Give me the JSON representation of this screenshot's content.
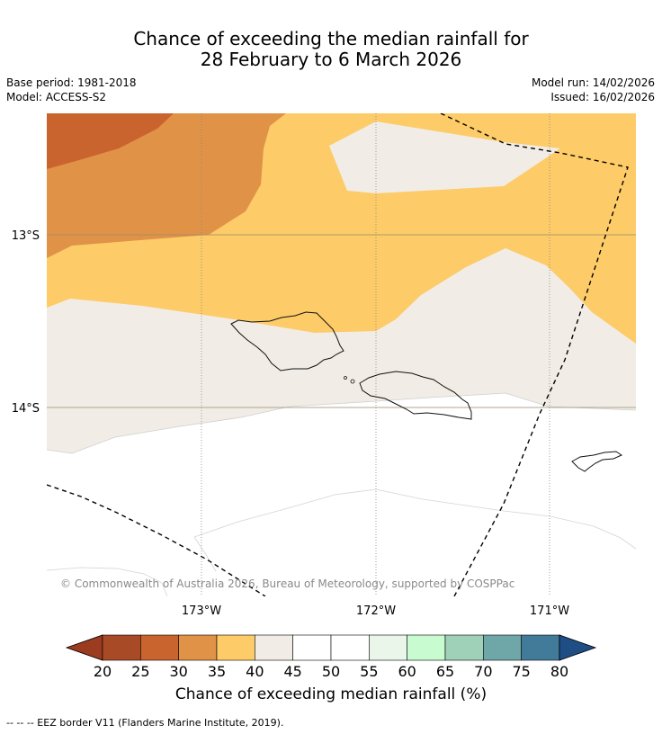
{
  "title": {
    "line1": "Chance of exceeding the median rainfall for",
    "line2": "28 February to 6 March 2026"
  },
  "meta": {
    "base_period": "Base period: 1981-2018",
    "model": "Model: ACCESS-S2",
    "model_run": "Model run: 14/02/2026",
    "issued": "Issued: 16/02/2026"
  },
  "map": {
    "lat_labels": [
      "13°S",
      "14°S"
    ],
    "lon_labels": [
      "173°W",
      "172°W",
      "171°W"
    ],
    "copyright": "© Commonwealth of Australia 2026, Bureau of Meteorology, supported by COSPPac"
  },
  "colorbar": {
    "ticks": [
      "20",
      "25",
      "30",
      "35",
      "40",
      "45",
      "50",
      "55",
      "60",
      "65",
      "70",
      "75",
      "80"
    ],
    "colors": [
      "#a94a26",
      "#c9642f",
      "#e09247",
      "#fdcb68",
      "#f1ede6",
      "#ffffff",
      "#ffffff",
      "#eaf6e9",
      "#c8fbcf",
      "#9fd0b8",
      "#6fa6a8",
      "#427a9a"
    ],
    "under_color": "#9b3b1f",
    "over_color": "#1f4e85",
    "label": "Chance of exceeding median rainfall (%)"
  },
  "footnote": "--  --  -- EEZ border V11 (Flanders Marine Institute, 2019)."
}
